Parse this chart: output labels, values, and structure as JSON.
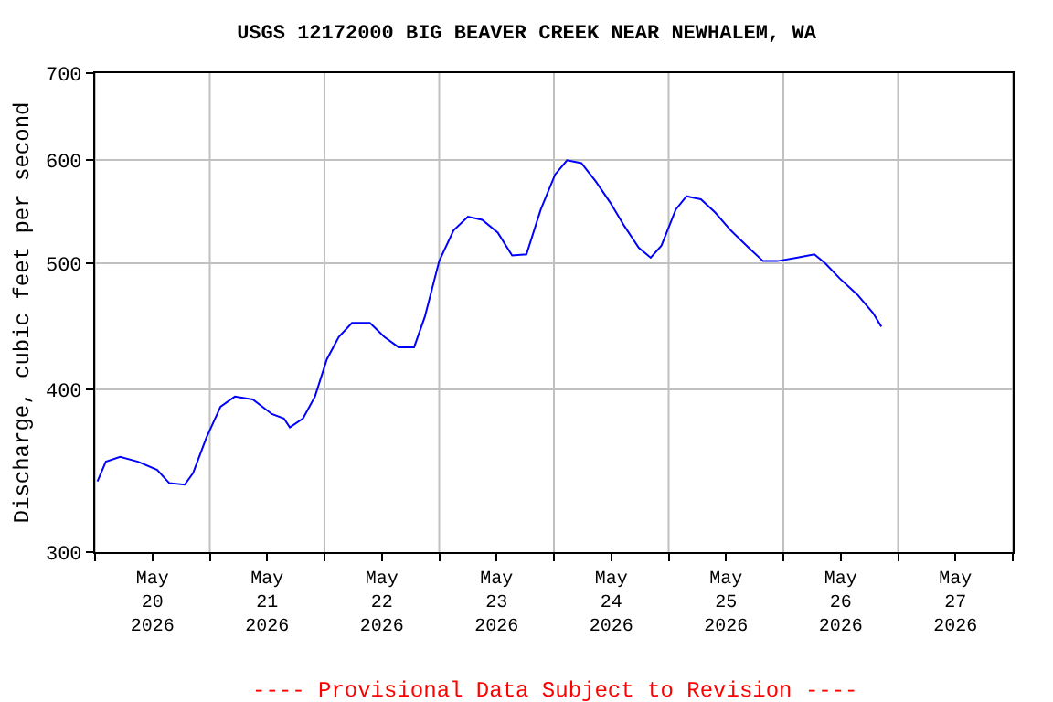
{
  "chart_data": {
    "type": "line",
    "title": "USGS 12172000 BIG BEAVER CREEK NEAR NEWHALEM, WA",
    "ylabel": "Discharge, cubic feet per second",
    "annotations": [
      "---- Provisional Data Subject to Revision ----"
    ],
    "log": "y",
    "grid": true,
    "marker": "none",
    "line_style": "solid",
    "xlim": [
      "2026-05-20T00:00",
      "2026-05-28T00:00"
    ],
    "xticks": [
      {
        "value": "2026-05-20T00:00",
        "label": null
      },
      {
        "value": "2026-05-20T12:00",
        "label": "May\n20\n2026"
      },
      {
        "value": "2026-05-21T00:00",
        "label": null
      },
      {
        "value": "2026-05-21T12:00",
        "label": "May\n21\n2026"
      },
      {
        "value": "2026-05-22T00:00",
        "label": null
      },
      {
        "value": "2026-05-22T12:00",
        "label": "May\n22\n2026"
      },
      {
        "value": "2026-05-23T00:00",
        "label": null
      },
      {
        "value": "2026-05-23T12:00",
        "label": "May\n23\n2026"
      },
      {
        "value": "2026-05-24T00:00",
        "label": null
      },
      {
        "value": "2026-05-24T12:00",
        "label": "May\n24\n2026"
      },
      {
        "value": "2026-05-25T00:00",
        "label": null
      },
      {
        "value": "2026-05-25T12:00",
        "label": "May\n25\n2026"
      },
      {
        "value": "2026-05-26T00:00",
        "label": null
      },
      {
        "value": "2026-05-26T12:00",
        "label": "May\n26\n2026"
      },
      {
        "value": "2026-05-27T00:00",
        "label": null
      },
      {
        "value": "2026-05-27T12:00",
        "label": "May\n27\n2026"
      },
      {
        "value": "2026-05-28T00:00",
        "label": null
      }
    ],
    "ylim": [
      300,
      700
    ],
    "yticks": [
      300,
      400,
      500,
      600,
      700
    ],
    "x": [
      "2026-05-20T00:30",
      "2026-05-20T02:15",
      "2026-05-20T05:15",
      "2026-05-20T09:00",
      "2026-05-20T13:00",
      "2026-05-20T15:30",
      "2026-05-20T18:45",
      "2026-05-20T20:30",
      "2026-05-20T23:15",
      "2026-05-21T02:15",
      "2026-05-21T05:15",
      "2026-05-21T09:00",
      "2026-05-21T13:00",
      "2026-05-21T15:30",
      "2026-05-21T16:45",
      "2026-05-21T19:30",
      "2026-05-21T22:00",
      "2026-05-22T00:30",
      "2026-05-22T03:00",
      "2026-05-22T05:45",
      "2026-05-22T09:30",
      "2026-05-22T12:30",
      "2026-05-22T15:30",
      "2026-05-22T18:45",
      "2026-05-22T21:00",
      "2026-05-23T00:00",
      "2026-05-23T03:00",
      "2026-05-23T06:00",
      "2026-05-23T09:00",
      "2026-05-23T12:15",
      "2026-05-23T15:15",
      "2026-05-23T18:15",
      "2026-05-23T21:15",
      "2026-05-24T00:15",
      "2026-05-24T02:45",
      "2026-05-24T05:45",
      "2026-05-24T08:45",
      "2026-05-24T11:45",
      "2026-05-24T14:45",
      "2026-05-24T17:45",
      "2026-05-24T20:15",
      "2026-05-24T22:30",
      "2026-05-25T01:30",
      "2026-05-25T03:45",
      "2026-05-25T06:45",
      "2026-05-25T09:45",
      "2026-05-25T13:00",
      "2026-05-25T16:45",
      "2026-05-25T19:45",
      "2026-05-25T22:45",
      "2026-05-26T02:45",
      "2026-05-26T06:30",
      "2026-05-26T08:45",
      "2026-05-26T11:45",
      "2026-05-26T15:30",
      "2026-05-26T18:45",
      "2026-05-26T20:30"
    ],
    "series": [
      {
        "color": "#0000ff",
        "values": [
          340,
          352,
          355,
          352,
          347,
          339,
          338,
          345,
          367,
          388,
          395,
          393,
          383,
          380,
          374,
          380,
          395,
          422,
          439,
          450,
          450,
          439,
          431,
          431,
          455,
          502,
          530,
          543,
          540,
          528,
          507,
          508,
          550,
          585,
          600,
          597,
          578,
          557,
          534,
          514,
          505,
          516,
          550,
          563,
          560,
          547,
          530,
          514,
          502,
          502,
          505,
          508,
          500,
          487,
          473,
          458,
          447
        ]
      }
    ]
  }
}
